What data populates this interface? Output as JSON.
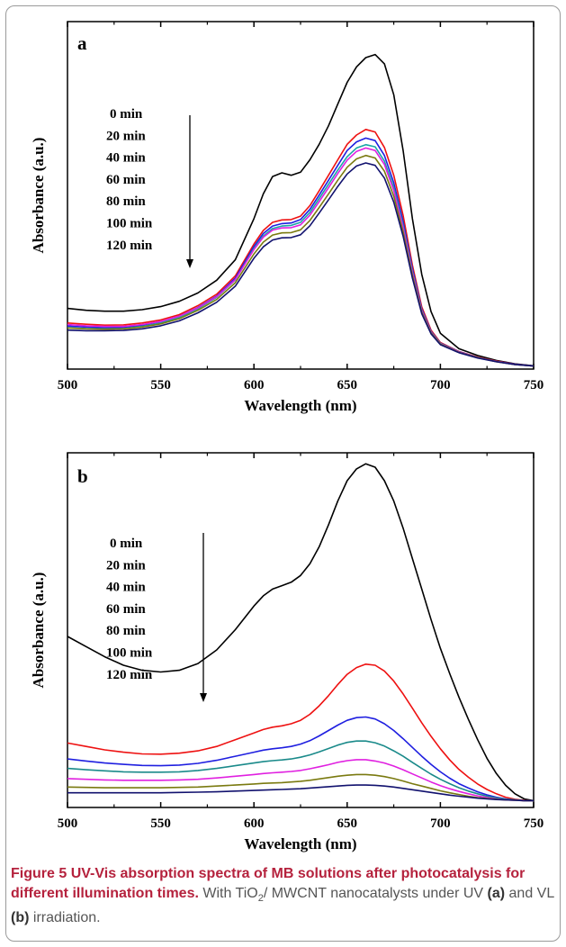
{
  "chart_data": [
    {
      "type": "line",
      "panel_label": "a",
      "xlabel": "Wavelength (nm)",
      "ylabel": "Absorbance (a.u.)",
      "xlim": [
        500,
        750
      ],
      "ylim": [
        0,
        1.0
      ],
      "x_ticks": [
        500,
        550,
        600,
        650,
        700,
        750
      ],
      "x_tick_labels": [
        "500",
        "550",
        "600",
        "650",
        "700",
        "750"
      ],
      "legend": [
        "0 min",
        "20 min",
        "40 min",
        "60 min",
        "80 min",
        "100 min",
        "120 min"
      ],
      "x": [
        500,
        510,
        520,
        530,
        540,
        550,
        560,
        570,
        580,
        590,
        600,
        605,
        610,
        615,
        620,
        625,
        630,
        635,
        640,
        645,
        650,
        655,
        660,
        665,
        670,
        675,
        680,
        685,
        690,
        695,
        700,
        710,
        720,
        730,
        740,
        750
      ],
      "series": [
        {
          "name": "0 min",
          "color": "#000000",
          "values": [
            0.19,
            0.184,
            0.181,
            0.181,
            0.186,
            0.196,
            0.213,
            0.24,
            0.281,
            0.347,
            0.48,
            0.56,
            0.616,
            0.628,
            0.62,
            0.63,
            0.67,
            0.72,
            0.78,
            0.85,
            0.92,
            0.97,
            1.0,
            1.01,
            0.98,
            0.88,
            0.7,
            0.48,
            0.3,
            0.18,
            0.11,
            0.06,
            0.038,
            0.022,
            0.011,
            0.005
          ]
        },
        {
          "name": "20 min",
          "color": "#ee1111",
          "values": [
            0.143,
            0.139,
            0.136,
            0.137,
            0.143,
            0.153,
            0.17,
            0.199,
            0.236,
            0.295,
            0.398,
            0.442,
            0.468,
            0.476,
            0.477,
            0.488,
            0.522,
            0.57,
            0.62,
            0.67,
            0.72,
            0.75,
            0.768,
            0.76,
            0.71,
            0.62,
            0.49,
            0.33,
            0.195,
            0.12,
            0.08,
            0.051,
            0.033,
            0.02,
            0.01,
            0.004
          ]
        },
        {
          "name": "40 min",
          "color": "#1f1fe0",
          "values": [
            0.133,
            0.13,
            0.128,
            0.129,
            0.136,
            0.147,
            0.165,
            0.193,
            0.23,
            0.288,
            0.39,
            0.432,
            0.456,
            0.464,
            0.466,
            0.477,
            0.51,
            0.556,
            0.604,
            0.652,
            0.7,
            0.728,
            0.74,
            0.732,
            0.684,
            0.596,
            0.47,
            0.318,
            0.188,
            0.116,
            0.078,
            0.05,
            0.032,
            0.019,
            0.01,
            0.004
          ]
        },
        {
          "name": "60 min",
          "color": "#1aa6a6",
          "values": [
            0.128,
            0.125,
            0.124,
            0.125,
            0.132,
            0.143,
            0.161,
            0.189,
            0.226,
            0.282,
            0.383,
            0.424,
            0.448,
            0.456,
            0.458,
            0.468,
            0.5,
            0.545,
            0.591,
            0.637,
            0.68,
            0.708,
            0.719,
            0.712,
            0.666,
            0.58,
            0.458,
            0.31,
            0.184,
            0.114,
            0.077,
            0.049,
            0.031,
            0.019,
            0.009,
            0.004
          ]
        },
        {
          "name": "80 min",
          "color": "#e020e0",
          "values": [
            0.138,
            0.134,
            0.132,
            0.132,
            0.138,
            0.148,
            0.165,
            0.192,
            0.228,
            0.283,
            0.38,
            0.42,
            0.443,
            0.45,
            0.451,
            0.46,
            0.491,
            0.535,
            0.58,
            0.626,
            0.669,
            0.697,
            0.708,
            0.7,
            0.655,
            0.57,
            0.45,
            0.305,
            0.182,
            0.113,
            0.076,
            0.049,
            0.031,
            0.019,
            0.009,
            0.004
          ]
        },
        {
          "name": "100 min",
          "color": "#7a7a10",
          "values": [
            0.127,
            0.124,
            0.123,
            0.124,
            0.13,
            0.14,
            0.157,
            0.184,
            0.219,
            0.273,
            0.366,
            0.404,
            0.427,
            0.434,
            0.435,
            0.444,
            0.474,
            0.516,
            0.56,
            0.604,
            0.646,
            0.673,
            0.684,
            0.676,
            0.633,
            0.552,
            0.437,
            0.297,
            0.178,
            0.111,
            0.075,
            0.048,
            0.031,
            0.018,
            0.009,
            0.004
          ]
        },
        {
          "name": "120 min",
          "color": "#11116e",
          "values": [
            0.12,
            0.118,
            0.118,
            0.119,
            0.124,
            0.134,
            0.15,
            0.176,
            0.21,
            0.262,
            0.352,
            0.389,
            0.411,
            0.418,
            0.419,
            0.428,
            0.457,
            0.498,
            0.541,
            0.584,
            0.624,
            0.65,
            0.66,
            0.652,
            0.611,
            0.533,
            0.423,
            0.288,
            0.173,
            0.108,
            0.073,
            0.047,
            0.03,
            0.018,
            0.009,
            0.004
          ]
        }
      ]
    },
    {
      "type": "line",
      "panel_label": "b",
      "xlabel": "Wavelength (nm)",
      "ylabel": "Absorbance (a.u.)",
      "xlim": [
        500,
        750
      ],
      "ylim": [
        0,
        1.0
      ],
      "x_ticks": [
        500,
        550,
        600,
        650,
        700,
        750
      ],
      "x_tick_labels": [
        "500",
        "550",
        "600",
        "650",
        "700",
        "750"
      ],
      "legend": [
        "0 min",
        "20 min",
        "40 min",
        "60 min",
        "80 min",
        "100 min",
        "120 min"
      ],
      "x": [
        500,
        510,
        520,
        530,
        540,
        550,
        560,
        570,
        580,
        590,
        600,
        605,
        610,
        615,
        620,
        625,
        630,
        635,
        640,
        645,
        650,
        655,
        660,
        665,
        670,
        675,
        680,
        685,
        690,
        695,
        700,
        705,
        710,
        715,
        720,
        725,
        730,
        735,
        740,
        745,
        750
      ],
      "series": [
        {
          "name": "0 min",
          "color": "#000000",
          "values": [
            0.5,
            0.47,
            0.44,
            0.415,
            0.4,
            0.395,
            0.4,
            0.42,
            0.46,
            0.52,
            0.59,
            0.62,
            0.64,
            0.65,
            0.66,
            0.68,
            0.715,
            0.765,
            0.83,
            0.9,
            0.96,
            0.995,
            1.01,
            1.0,
            0.96,
            0.9,
            0.82,
            0.73,
            0.64,
            0.55,
            0.465,
            0.39,
            0.32,
            0.255,
            0.195,
            0.14,
            0.095,
            0.06,
            0.035,
            0.02,
            0.015
          ]
        },
        {
          "name": "20 min",
          "color": "#ee1111",
          "values": [
            0.185,
            0.175,
            0.165,
            0.158,
            0.153,
            0.152,
            0.155,
            0.162,
            0.175,
            0.195,
            0.215,
            0.225,
            0.232,
            0.236,
            0.242,
            0.252,
            0.27,
            0.295,
            0.325,
            0.358,
            0.388,
            0.408,
            0.418,
            0.415,
            0.398,
            0.368,
            0.33,
            0.288,
            0.245,
            0.205,
            0.168,
            0.135,
            0.107,
            0.084,
            0.064,
            0.048,
            0.035,
            0.025,
            0.019,
            0.016,
            0.015
          ]
        },
        {
          "name": "40 min",
          "color": "#1f1fe0",
          "values": [
            0.138,
            0.132,
            0.126,
            0.122,
            0.119,
            0.118,
            0.12,
            0.125,
            0.134,
            0.146,
            0.158,
            0.164,
            0.168,
            0.171,
            0.175,
            0.182,
            0.192,
            0.206,
            0.222,
            0.238,
            0.252,
            0.26,
            0.262,
            0.256,
            0.242,
            0.222,
            0.198,
            0.172,
            0.146,
            0.122,
            0.1,
            0.081,
            0.065,
            0.052,
            0.041,
            0.032,
            0.025,
            0.02,
            0.017,
            0.015,
            0.015
          ]
        },
        {
          "name": "60 min",
          "color": "#1a8a8a",
          "values": [
            0.11,
            0.106,
            0.103,
            0.1,
            0.099,
            0.099,
            0.1,
            0.104,
            0.11,
            0.118,
            0.126,
            0.13,
            0.133,
            0.135,
            0.138,
            0.143,
            0.15,
            0.159,
            0.169,
            0.179,
            0.187,
            0.191,
            0.191,
            0.186,
            0.176,
            0.162,
            0.146,
            0.128,
            0.11,
            0.093,
            0.078,
            0.065,
            0.053,
            0.043,
            0.035,
            0.028,
            0.023,
            0.019,
            0.017,
            0.015,
            0.015
          ]
        },
        {
          "name": "80 min",
          "color": "#e020e0",
          "values": [
            0.08,
            0.078,
            0.076,
            0.075,
            0.075,
            0.075,
            0.076,
            0.078,
            0.082,
            0.087,
            0.092,
            0.095,
            0.097,
            0.099,
            0.101,
            0.104,
            0.109,
            0.115,
            0.121,
            0.128,
            0.133,
            0.136,
            0.136,
            0.132,
            0.126,
            0.117,
            0.106,
            0.094,
            0.082,
            0.07,
            0.059,
            0.05,
            0.042,
            0.035,
            0.029,
            0.024,
            0.02,
            0.017,
            0.016,
            0.015,
            0.015
          ]
        },
        {
          "name": "100 min",
          "color": "#7a7a10",
          "values": [
            0.055,
            0.054,
            0.053,
            0.053,
            0.053,
            0.053,
            0.054,
            0.055,
            0.058,
            0.061,
            0.064,
            0.066,
            0.067,
            0.068,
            0.07,
            0.072,
            0.075,
            0.079,
            0.083,
            0.087,
            0.09,
            0.092,
            0.092,
            0.09,
            0.086,
            0.08,
            0.073,
            0.065,
            0.058,
            0.051,
            0.044,
            0.038,
            0.033,
            0.028,
            0.024,
            0.021,
            0.019,
            0.017,
            0.016,
            0.015,
            0.015
          ]
        },
        {
          "name": "120 min",
          "color": "#11116e",
          "values": [
            0.038,
            0.038,
            0.038,
            0.038,
            0.038,
            0.038,
            0.039,
            0.04,
            0.041,
            0.043,
            0.045,
            0.046,
            0.047,
            0.048,
            0.049,
            0.05,
            0.052,
            0.054,
            0.056,
            0.058,
            0.06,
            0.061,
            0.061,
            0.06,
            0.058,
            0.055,
            0.051,
            0.047,
            0.043,
            0.039,
            0.035,
            0.031,
            0.028,
            0.025,
            0.022,
            0.02,
            0.018,
            0.017,
            0.016,
            0.015,
            0.015
          ]
        }
      ]
    }
  ],
  "caption": {
    "figure_label": "Figure 5",
    "title": "UV-Vis absorption spectra of MB solutions after photocatalysis for different illumination times.",
    "desc_prefix": "With TiO",
    "desc_sub": "2",
    "desc_mid": "/ MWCNT nanocatalysts under UV",
    "desc_a": "(a)",
    "desc_and": "and VL",
    "desc_b": "(b)",
    "desc_end": "irradiation."
  }
}
